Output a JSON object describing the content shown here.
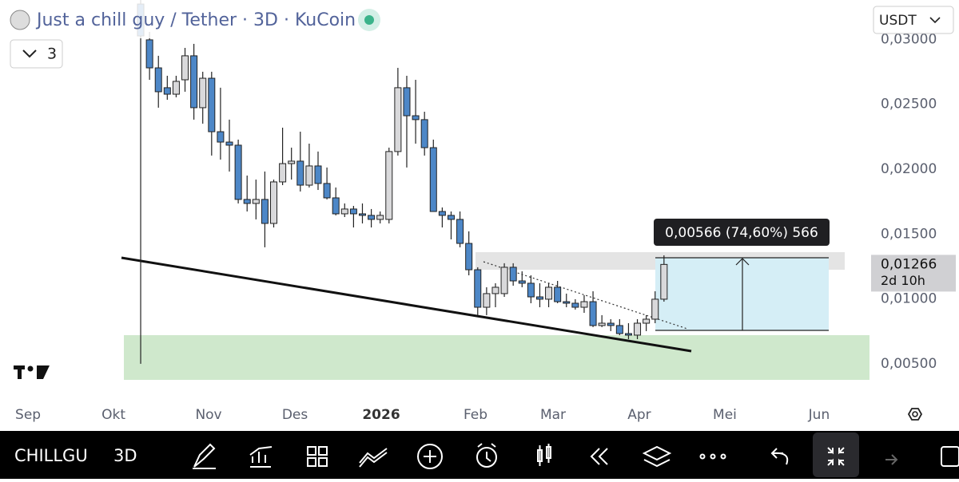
{
  "header": {
    "title": "Just a chill guy / Tether · 3D · KuCoin",
    "collapse_count": "3",
    "currency": "USDT"
  },
  "chart_data": {
    "type": "candlestick",
    "open": [
      0.03273,
      0.02997,
      0.02781,
      0.02628,
      0.02578,
      0.02689,
      0.02874,
      0.02474,
      0.02701,
      0.02289,
      0.02209,
      0.02185,
      0.01767,
      0.01736,
      0.01767,
      0.01582,
      0.01902,
      0.02043,
      0.02062,
      0.01877,
      0.02025,
      0.0189,
      0.01779,
      0.01656,
      0.01693,
      0.01656,
      0.01644,
      0.01613,
      0.01613,
      0.02136,
      0.02628,
      0.02412,
      0.02382,
      0.02166,
      0.01674,
      0.01644,
      0.01613,
      0.01428,
      0.01225,
      0.00936,
      0.01041,
      0.01041,
      0.01244,
      0.01139,
      0.01121,
      0.01016,
      0.00998,
      0.0109,
      0.00979,
      0.00967,
      0.00936,
      0.00979,
      0.00795,
      0.00813,
      0.00795,
      0.00733,
      0.00721,
      0.00813,
      0.00844,
      0.00998
    ],
    "high": [
      0.03304,
      0.03058,
      0.02874,
      0.0272,
      0.0272,
      0.02935,
      0.02966,
      0.02751,
      0.02751,
      0.02628,
      0.02382,
      0.02228,
      0.01951,
      0.0192,
      0.01982,
      0.0192,
      0.0232,
      0.02166,
      0.02289,
      0.02197,
      0.02136,
      0.02013,
      0.01859,
      0.01736,
      0.01717,
      0.01736,
      0.01693,
      0.01674,
      0.02166,
      0.02781,
      0.0272,
      0.02689,
      0.02443,
      0.02228,
      0.01705,
      0.01674,
      0.01674,
      0.01521,
      0.01244,
      0.0109,
      0.01121,
      0.01275,
      0.01275,
      0.01213,
      0.01182,
      0.01121,
      0.01121,
      0.01139,
      0.01041,
      0.00998,
      0.01029,
      0.01059,
      0.00875,
      0.00844,
      0.00844,
      0.00813,
      0.00844,
      0.00875,
      0.01059,
      0.01336
    ],
    "low": [
      0.005,
      0.02689,
      0.02474,
      0.02535,
      0.02554,
      0.02597,
      0.02382,
      0.02351,
      0.02105,
      0.02074,
      0.01982,
      0.01736,
      0.01674,
      0.01613,
      0.01398,
      0.01551,
      0.01877,
      0.0192,
      0.01828,
      0.01859,
      0.0184,
      0.01767,
      0.01644,
      0.01631,
      0.01551,
      0.01582,
      0.01551,
      0.01582,
      0.01582,
      0.02105,
      0.02013,
      0.02197,
      0.02105,
      0.01674,
      0.01551,
      0.01459,
      0.01398,
      0.01182,
      0.00875,
      0.00875,
      0.00936,
      0.01016,
      0.01102,
      0.0109,
      0.00967,
      0.00936,
      0.00936,
      0.00967,
      0.00936,
      0.00918,
      0.00893,
      0.00783,
      0.00783,
      0.00752,
      0.00721,
      0.0069,
      0.0069,
      0.00752,
      0.00813,
      0.00979
    ],
    "close": [
      0.03027,
      0.02781,
      0.02597,
      0.02578,
      0.02677,
      0.02874,
      0.02474,
      0.02701,
      0.02289,
      0.02209,
      0.02185,
      0.01767,
      0.01736,
      0.01767,
      0.01582,
      0.01902,
      0.02043,
      0.02062,
      0.01877,
      0.02025,
      0.0189,
      0.01779,
      0.01656,
      0.01693,
      0.01656,
      0.01644,
      0.01613,
      0.01644,
      0.02136,
      0.02628,
      0.02412,
      0.02382,
      0.02166,
      0.01674,
      0.01644,
      0.01613,
      0.01428,
      0.01225,
      0.00936,
      0.01041,
      0.0109,
      0.01244,
      0.01139,
      0.01121,
      0.01016,
      0.00998,
      0.0109,
      0.00979,
      0.00967,
      0.00936,
      0.00979,
      0.00795,
      0.00813,
      0.00795,
      0.00733,
      0.00721,
      0.00813,
      0.00844,
      0.00998,
      0.01266
    ],
    "up_color": "#d9d9db",
    "down_color": "#4d87c7",
    "ylim": [
      0.00198,
      0.03304
    ],
    "yticks": [
      {
        "value": 0.005,
        "label": "0,00500"
      },
      {
        "value": 0.01,
        "label": "0,01000"
      },
      {
        "value": 0.015,
        "label": "0,01500"
      },
      {
        "value": 0.02,
        "label": "0,02000"
      },
      {
        "value": 0.025,
        "label": "0,02500"
      },
      {
        "value": 0.03,
        "label": "0,03000"
      }
    ],
    "xlim": [
      -15.86,
      81.9
    ],
    "xticks": [
      {
        "value": -12.7,
        "label": "Sep"
      },
      {
        "value": -3.06,
        "label": "Okt"
      },
      {
        "value": 7.66,
        "label": "Nov"
      },
      {
        "value": 17.39,
        "label": "Des"
      },
      {
        "value": 27.12,
        "label": "2026"
      },
      {
        "value": 37.75,
        "label": "Feb"
      },
      {
        "value": 46.49,
        "label": "Mar"
      },
      {
        "value": 56.22,
        "label": "Apr"
      },
      {
        "value": 65.86,
        "label": "Mei"
      },
      {
        "value": 76.49,
        "label": "Jun"
      }
    ],
    "measure_label": "0,00566 (74,60%) 566",
    "last_price_label": "0,01266",
    "countdown": "2d 10h"
  },
  "toolbar": {
    "symbol": "CHILLGU",
    "interval": "3D"
  }
}
